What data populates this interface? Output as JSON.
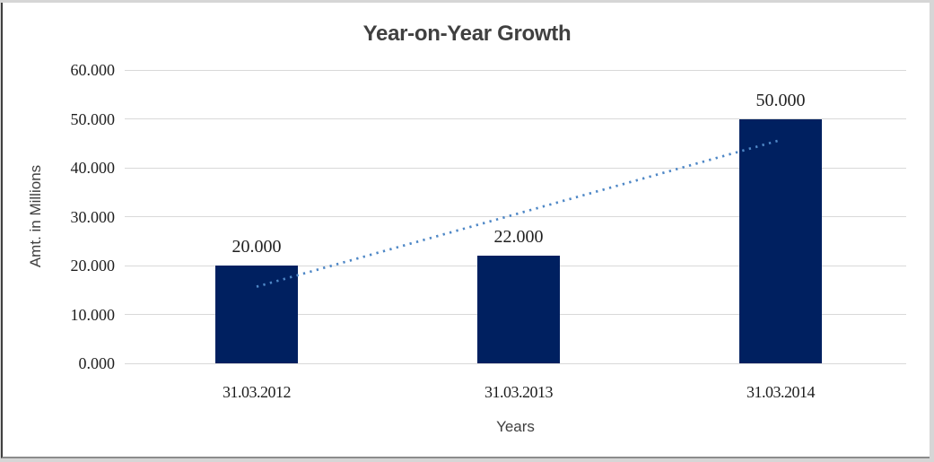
{
  "chart_data": {
    "type": "bar",
    "title": "Year-on-Year Growth",
    "xlabel": "Years",
    "ylabel": "Amt. in Millions",
    "categories": [
      "31.03.2012",
      "31.03.2013",
      "31.03.2014"
    ],
    "values": [
      20,
      22,
      50
    ],
    "value_labels": [
      "20.000",
      "22.000",
      "50.000"
    ],
    "y_ticks": [
      0,
      10,
      20,
      30,
      40,
      50,
      60
    ],
    "y_tick_labels": [
      "0.000",
      "10.000",
      "20.000",
      "30.000",
      "40.000",
      "50.000",
      "60.000"
    ],
    "ylim": [
      0,
      60
    ],
    "grid": "horizontal",
    "legend": "none",
    "trendline": {
      "type": "linear-dotted",
      "start": {
        "category_index": 0,
        "value": 15.67
      },
      "end": {
        "category_index": 2,
        "value": 45.67
      }
    },
    "colors": {
      "bar": "#002060",
      "trendline": "#4E87C6",
      "gridline": "#D9D9D9",
      "title_text": "#404040",
      "axis_title_text": "#404040",
      "label_text": "#1F1F1F",
      "chart_background": "#FFFFFF",
      "outer_background": "#D6D6D6",
      "frame_border": "#3F3F3F"
    }
  }
}
